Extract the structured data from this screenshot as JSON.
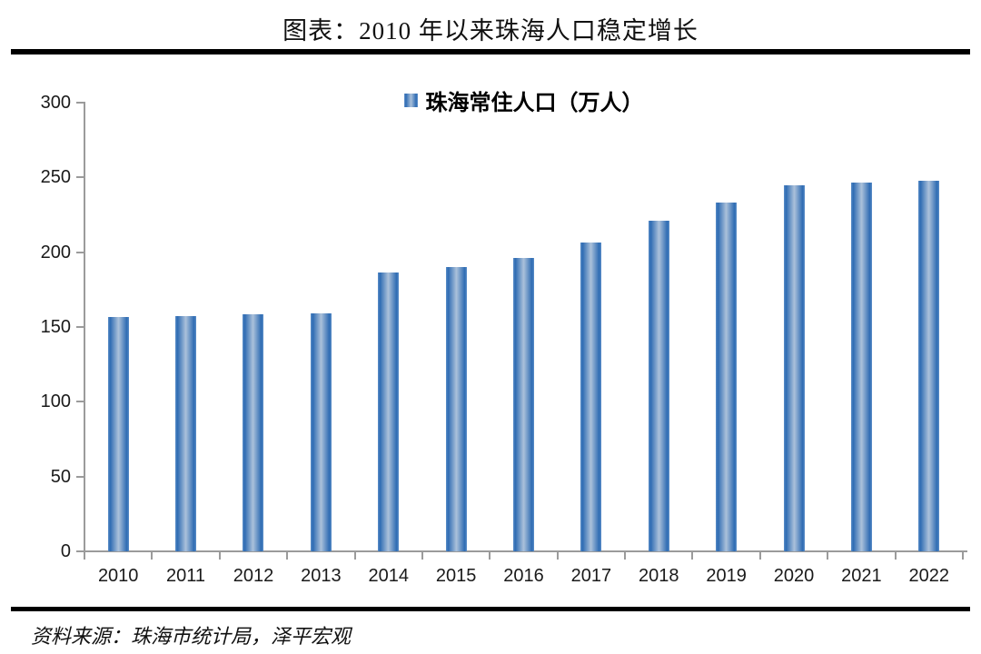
{
  "header": {
    "title": "图表：2010 年以来珠海人口稳定增长"
  },
  "footer": {
    "source": "资料来源：珠海市统计局，泽平宏观"
  },
  "colors": {
    "bar_edge": "#2e6bb3",
    "bar_center": "#abc1da",
    "axis": "#9b9b9b",
    "text": "#1a1a1a",
    "divider": "#000000",
    "background": "#ffffff"
  },
  "chart_data": {
    "type": "bar",
    "title": "图表：2010 年以来珠海人口稳定增长",
    "legend_entries": [
      "珠海常住人口（万人）"
    ],
    "legend_position": "top-center",
    "categories": [
      "2010",
      "2011",
      "2012",
      "2013",
      "2014",
      "2015",
      "2016",
      "2017",
      "2018",
      "2019",
      "2020",
      "2021",
      "2022"
    ],
    "series": [
      {
        "name": "珠海常住人口（万人）",
        "values": [
          156.4,
          157.1,
          158.3,
          159.4,
          186.3,
          189.9,
          196.0,
          206.5,
          221.2,
          233.4,
          245.0,
          246.7,
          247.7
        ]
      }
    ],
    "xlabel": "",
    "ylabel": "",
    "ylim": [
      0,
      300
    ],
    "yticks": [
      0,
      50,
      100,
      150,
      200,
      250,
      300
    ],
    "grid": false,
    "source_note": "资料来源：珠海市统计局，泽平宏观"
  }
}
